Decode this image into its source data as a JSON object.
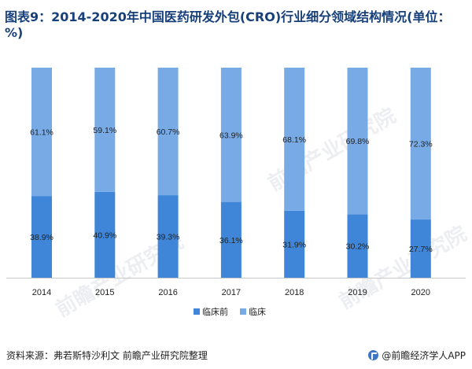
{
  "title": "图表9：2014-2020年中国医药研发外包(CRO)行业细分领域结构情况(单位：%)",
  "source": "资料来源：弗若斯特沙利文 前瞻产业研究院整理",
  "brand": "@前瞻经济学人APP",
  "watermark": "前瞻产业研究院",
  "colors": {
    "pre_clinical": "#3f86d8",
    "clinical": "#78abe6"
  },
  "chart_data": {
    "type": "bar",
    "stacked": true,
    "categories": [
      "2014",
      "2015",
      "2016",
      "2017",
      "2018",
      "2019",
      "2020"
    ],
    "series": [
      {
        "name": "临床前",
        "values": [
          38.9,
          40.9,
          39.3,
          36.1,
          31.9,
          30.2,
          27.7
        ]
      },
      {
        "name": "临床",
        "values": [
          61.1,
          59.1,
          60.7,
          63.9,
          68.1,
          69.8,
          72.3
        ]
      }
    ],
    "ylim": [
      0,
      100
    ],
    "grid": false,
    "legend_position": "bottom"
  }
}
